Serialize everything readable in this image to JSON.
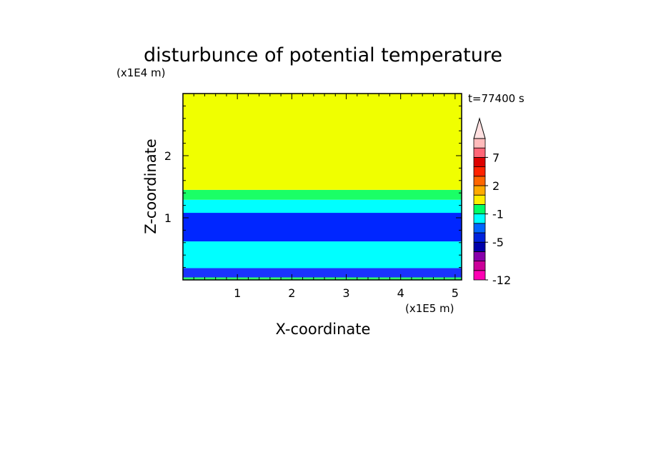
{
  "chart_data": {
    "type": "heatmap",
    "title": "disturbunce of potential temperature",
    "time_label": "t=77400 s",
    "xlabel": "X-coordinate",
    "ylabel": "Z-coordinate",
    "x_scale_label": "(x1E5 m)",
    "y_scale_label": "(x1E4 m)",
    "xlim": [
      0,
      5.12
    ],
    "ylim": [
      0,
      3.0
    ],
    "x_ticks": [
      1,
      2,
      3,
      4,
      5
    ],
    "y_ticks": [
      1,
      2
    ],
    "x_tick_labels": [
      "1",
      "2",
      "3",
      "4",
      "5"
    ],
    "y_tick_labels": [
      "1",
      "2"
    ],
    "bands": [
      {
        "z_bottom": 0.0,
        "z_top": 0.04,
        "color": "#33ff66"
      },
      {
        "z_bottom": 0.04,
        "z_top": 0.19,
        "color": "#1a33ff"
      },
      {
        "z_bottom": 0.19,
        "z_top": 0.62,
        "color": "#00ffff"
      },
      {
        "z_bottom": 0.62,
        "z_top": 1.08,
        "color": "#0026ff"
      },
      {
        "z_bottom": 1.08,
        "z_top": 1.29,
        "color": "#00ffff"
      },
      {
        "z_bottom": 1.29,
        "z_top": 1.45,
        "color": "#1aff66"
      },
      {
        "z_bottom": 1.45,
        "z_top": 3.0,
        "color": "#f0ff00"
      }
    ],
    "colorbar": {
      "colors": [
        "#ff00b3",
        "#cc0099",
        "#8800aa",
        "#0000aa",
        "#0022dd",
        "#0066ff",
        "#00ffff",
        "#00ff66",
        "#ffee00",
        "#ffaa00",
        "#ff6600",
        "#ff2200",
        "#dd0000",
        "#ff6677",
        "#ffbbbb"
      ],
      "extend_top_color": "#ffe0e0",
      "labels": [
        {
          "text": "-12",
          "index": 0
        },
        {
          "text": "-5",
          "index": 4
        },
        {
          "text": "-1",
          "index": 7
        },
        {
          "text": "2",
          "index": 10
        },
        {
          "text": "7",
          "index": 13
        }
      ]
    }
  }
}
